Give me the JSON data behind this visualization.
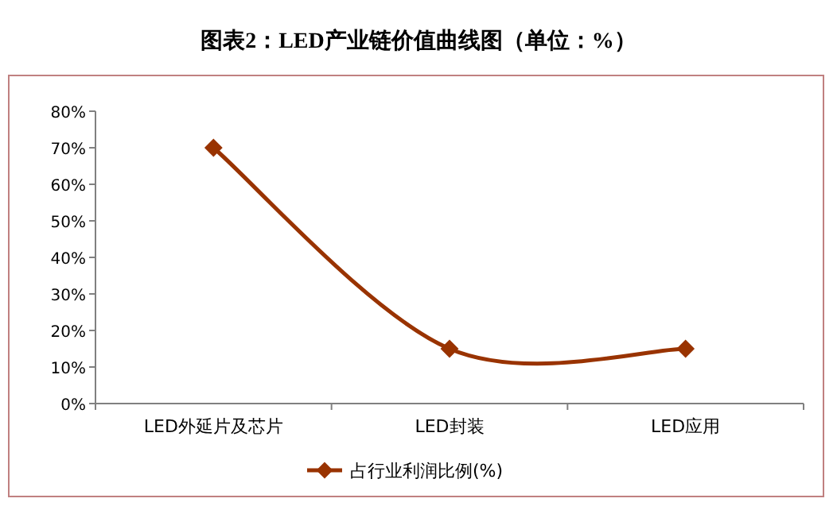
{
  "chart_data": {
    "type": "line",
    "title": "图表2：LED产业链价值曲线图（单位：%）",
    "categories": [
      "LED外延片及芯片",
      "LED封装",
      "LED应用"
    ],
    "series": [
      {
        "name": "占行业利润比例(%)",
        "color": "#993300",
        "values": [
          70,
          15,
          15
        ]
      }
    ],
    "ylim": [
      0,
      80
    ],
    "yticks": [
      {
        "value": 0,
        "label": "0%"
      },
      {
        "value": 10,
        "label": "10%"
      },
      {
        "value": 20,
        "label": "20%"
      },
      {
        "value": 30,
        "label": "30%"
      },
      {
        "value": 40,
        "label": "40%"
      },
      {
        "value": 50,
        "label": "50%"
      },
      {
        "value": 60,
        "label": "60%"
      },
      {
        "value": 70,
        "label": "70%"
      },
      {
        "value": 80,
        "label": "80%"
      }
    ],
    "legend": "bottom",
    "marker": "diamond"
  }
}
